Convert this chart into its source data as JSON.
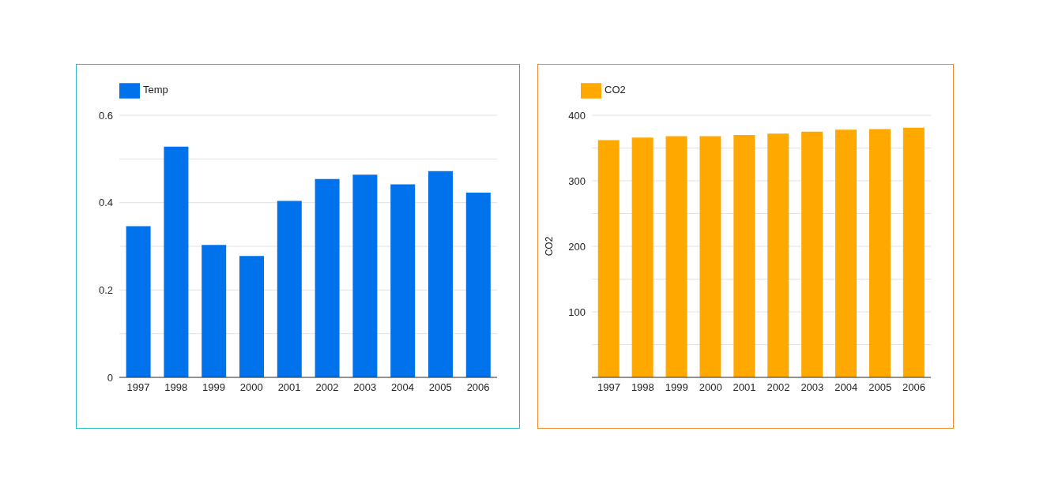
{
  "chart_data": [
    {
      "type": "bar",
      "categories": [
        "1997",
        "1998",
        "1999",
        "2000",
        "2001",
        "2002",
        "2003",
        "2004",
        "2005",
        "2006"
      ],
      "series": [
        {
          "name": "Temp",
          "color": "#0073ec",
          "values": [
            0.346,
            0.528,
            0.303,
            0.278,
            0.404,
            0.454,
            0.464,
            0.442,
            0.472,
            0.423
          ]
        }
      ],
      "ylim": [
        0,
        0.6
      ],
      "yticks": [
        0,
        {
          "value": 0.1,
          "label": null
        },
        0.2,
        {
          "value": 0.3,
          "label": null
        },
        0.4,
        {
          "value": 0.5,
          "label": null
        },
        0.6
      ],
      "grid": "y",
      "legend": "top left"
    },
    {
      "type": "bar",
      "categories": [
        "1997",
        "1998",
        "1999",
        "2000",
        "2001",
        "2002",
        "2003",
        "2004",
        "2005",
        "2006"
      ],
      "series": [
        {
          "name": "CO2",
          "color": "#ffa800",
          "values": [
            362,
            366,
            368,
            368,
            370,
            372,
            375,
            378,
            379,
            381
          ]
        }
      ],
      "ylabel": "CO2",
      "ylim": [
        0,
        400
      ],
      "yticks": [
        {
          "value": 0,
          "label": null
        },
        {
          "value": 50,
          "label": null
        },
        100,
        {
          "value": 150,
          "label": null
        },
        200,
        {
          "value": 250,
          "label": null
        },
        300,
        {
          "value": 350,
          "label": null
        },
        400
      ],
      "grid": "y",
      "legend": "top left"
    }
  ]
}
